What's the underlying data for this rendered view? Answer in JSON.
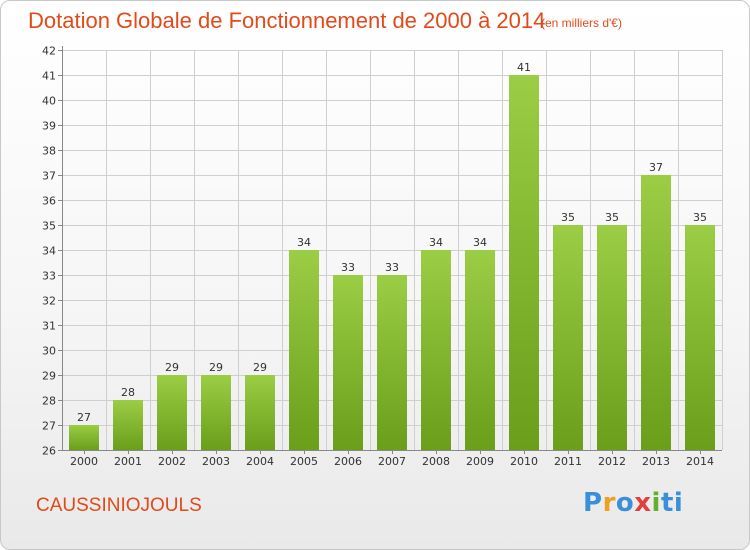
{
  "header": {
    "title": "Dotation Globale de Fonctionnement de 2000 à 2014",
    "unit": "(en milliers d'€)"
  },
  "footer": {
    "commune": "CAUSSINIOJOULS",
    "logo_text": "Proxiti"
  },
  "colors": {
    "bar_top": "#9bcd45",
    "bar_bottom": "#6a9e1b",
    "title": "#e24a1a",
    "grid": "#cfcfcf"
  },
  "chart_data": {
    "type": "bar",
    "title": "Dotation Globale de Fonctionnement de 2000 à 2014",
    "subtitle": "(en milliers d'€)",
    "categories": [
      "2000",
      "2001",
      "2002",
      "2003",
      "2004",
      "2005",
      "2006",
      "2007",
      "2008",
      "2009",
      "2010",
      "2011",
      "2012",
      "2013",
      "2014"
    ],
    "values": [
      27,
      28,
      29,
      29,
      29,
      34,
      33,
      33,
      34,
      34,
      41,
      35,
      35,
      37,
      35
    ],
    "ylim": [
      26,
      42
    ],
    "yticks": [
      26,
      27,
      28,
      29,
      30,
      31,
      32,
      33,
      34,
      35,
      36,
      37,
      38,
      39,
      40,
      41,
      42
    ],
    "grid": true,
    "data_labels": true
  }
}
